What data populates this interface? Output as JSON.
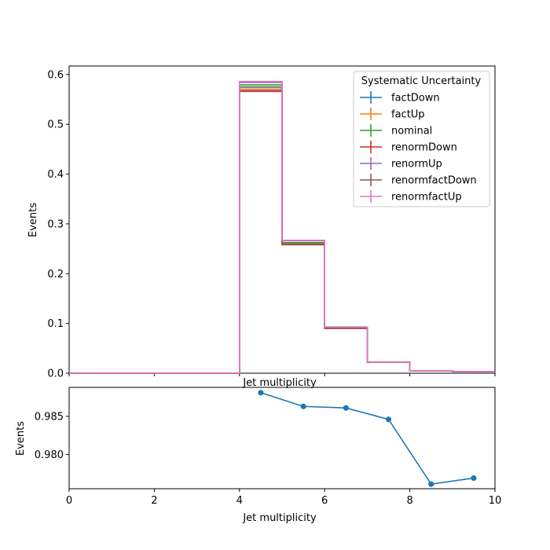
{
  "chart_data": [
    {
      "type": "line",
      "drawstyle": "steps",
      "xlabel": "Jet multiplicity",
      "ylabel": "Events",
      "xlim": [
        0,
        10
      ],
      "ylim": [
        0,
        0.617
      ],
      "yticks": [
        0.0,
        0.1,
        0.2,
        0.3,
        0.4,
        0.5,
        0.6
      ],
      "ytick_labels": [
        "0.0",
        "0.1",
        "0.2",
        "0.3",
        "0.4",
        "0.5",
        "0.6"
      ],
      "xticks": [
        0,
        2,
        4,
        6,
        8,
        10
      ],
      "x_tick_labels_shown": false,
      "bin_edges": [
        0,
        1,
        2,
        3,
        4,
        5,
        6,
        7,
        8,
        9,
        10
      ],
      "legend_title": "Systematic Uncertainty",
      "legend_position": "top-right",
      "series": [
        {
          "name": "factDown",
          "color": "#1f77b4",
          "values": [
            0,
            0,
            0,
            0,
            0.575,
            0.262,
            0.091,
            0.022,
            0.005,
            0.003
          ]
        },
        {
          "name": "factUp",
          "color": "#ff7f0e",
          "values": [
            0,
            0,
            0,
            0,
            0.573,
            0.261,
            0.091,
            0.022,
            0.005,
            0.003
          ]
        },
        {
          "name": "nominal",
          "color": "#2ca02c",
          "values": [
            0,
            0,
            0,
            0,
            0.579,
            0.262,
            0.091,
            0.022,
            0.005,
            0.003
          ]
        },
        {
          "name": "renormDown",
          "color": "#d62728",
          "values": [
            0,
            0,
            0,
            0,
            0.566,
            0.258,
            0.09,
            0.022,
            0.005,
            0.003
          ]
        },
        {
          "name": "renormUp",
          "color": "#9467bd",
          "values": [
            0,
            0,
            0,
            0,
            0.584,
            0.266,
            0.092,
            0.022,
            0.005,
            0.003
          ]
        },
        {
          "name": "renormfactDown",
          "color": "#8c564b",
          "values": [
            0,
            0,
            0,
            0,
            0.569,
            0.259,
            0.09,
            0.022,
            0.005,
            0.003
          ]
        },
        {
          "name": "renormfactUp",
          "color": "#e377c2",
          "values": [
            0,
            0,
            0,
            0,
            0.586,
            0.267,
            0.093,
            0.022,
            0.005,
            0.003
          ]
        }
      ]
    },
    {
      "type": "line",
      "markers": true,
      "xlabel": "Jet multiplicity",
      "ylabel": "Events",
      "xlim": [
        0,
        10
      ],
      "ylim": [
        0.9755,
        0.9888
      ],
      "xticks": [
        0,
        2,
        4,
        6,
        8,
        10
      ],
      "xtick_labels": [
        "0",
        "2",
        "4",
        "6",
        "8",
        "10"
      ],
      "yticks": [
        0.98,
        0.985
      ],
      "ytick_labels": [
        "0.980",
        "0.985"
      ],
      "series": [
        {
          "color": "#1f77b4",
          "x": [
            4.5,
            5.5,
            6.5,
            7.5,
            8.5,
            9.5
          ],
          "y": [
            0.9881,
            0.9863,
            0.9861,
            0.9846,
            0.9761,
            0.9769
          ]
        }
      ]
    }
  ]
}
